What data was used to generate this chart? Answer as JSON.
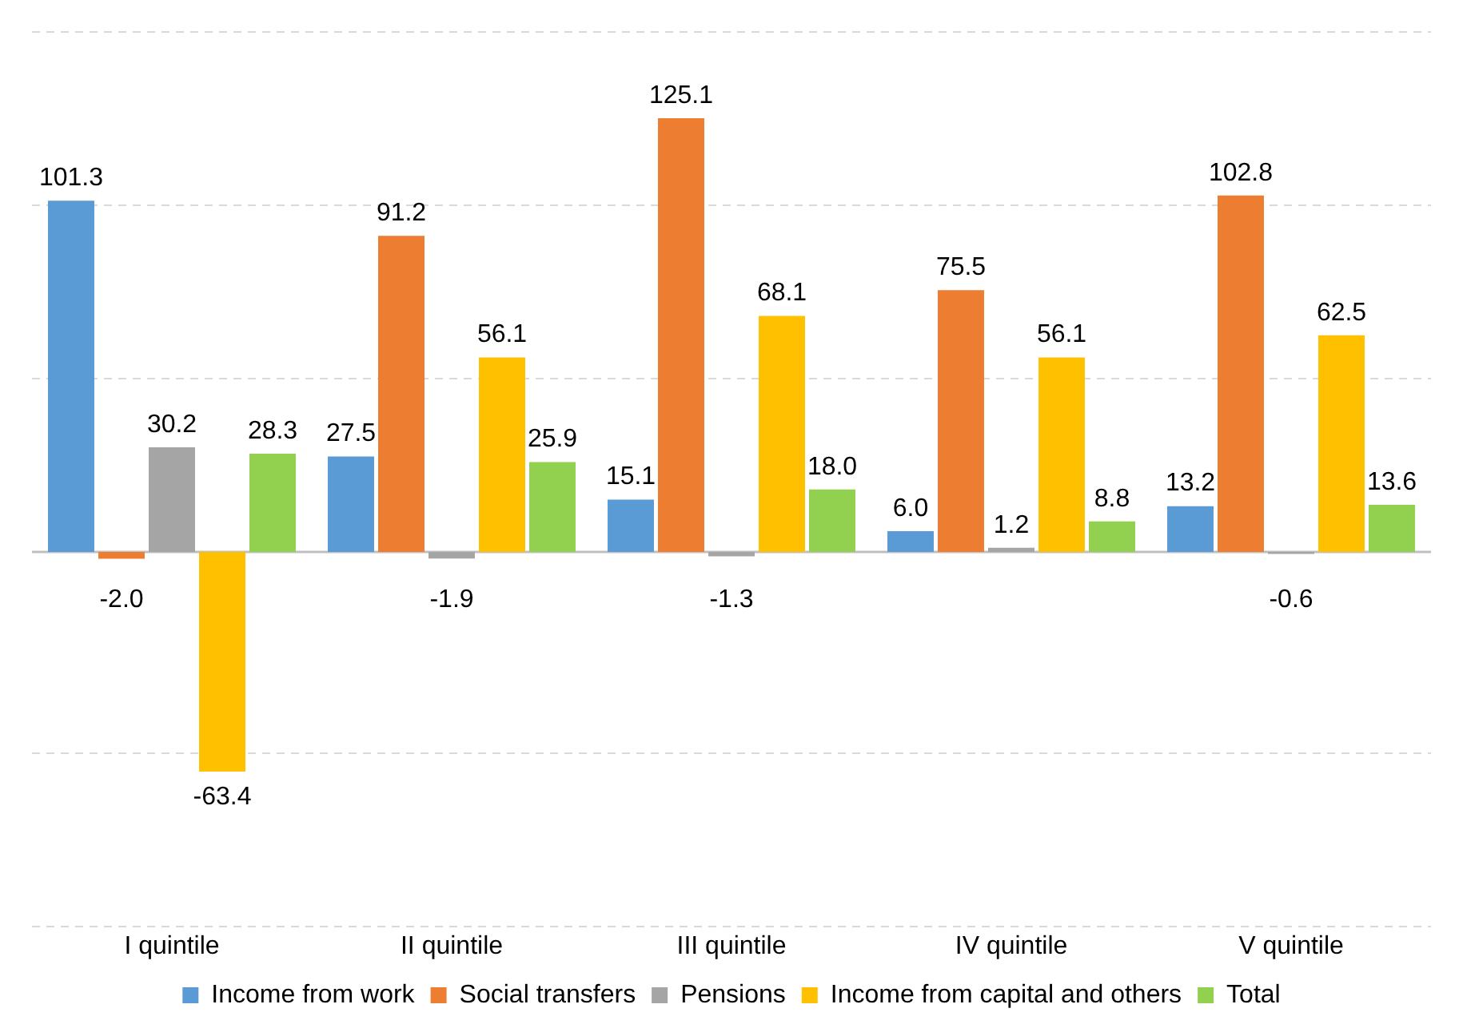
{
  "chart_data": {
    "type": "bar",
    "categories": [
      "I quintile",
      "II quintile",
      "III quintile",
      "IV quintile",
      "V quintile"
    ],
    "series": [
      {
        "name": "Income from work",
        "color": "#5b9bd5",
        "values": [
          101.3,
          27.5,
          15.1,
          6.0,
          13.2
        ],
        "value_labels": [
          "101.3",
          "27.5",
          "15.1",
          "6.0",
          "13.2"
        ]
      },
      {
        "name": "Social transfers",
        "color": "#ed7d31",
        "values": [
          -2.0,
          91.2,
          125.1,
          75.5,
          102.8
        ],
        "value_labels": [
          "-2.0",
          "91.2",
          "125.1",
          "75.5",
          "102.8"
        ]
      },
      {
        "name": "Pensions",
        "color": "#a5a5a5",
        "values": [
          30.2,
          -1.9,
          -1.3,
          1.2,
          -0.6
        ],
        "value_labels": [
          "30.2",
          "-1.9",
          "-1.3",
          "1.2",
          "-0.6"
        ]
      },
      {
        "name": "Income from capital and others",
        "color": "#ffc000",
        "values": [
          -63.4,
          56.1,
          68.1,
          56.1,
          62.5
        ],
        "value_labels": [
          "-63.4",
          "56.1",
          "68.1",
          "56.1",
          "62.5"
        ]
      },
      {
        "name": "Total",
        "color": "#92d050",
        "values": [
          28.3,
          25.9,
          18.0,
          8.8,
          13.6
        ],
        "value_labels": [
          "28.3",
          "25.9",
          "18.0",
          "8.8",
          "13.6"
        ]
      }
    ],
    "ylim": [
      -108,
      150
    ],
    "yticks": [
      {
        "value": -108,
        "label": null
      },
      {
        "value": -58,
        "label": null
      },
      {
        "value": 50,
        "label": null
      },
      {
        "value": 100,
        "label": null
      },
      {
        "value": 150,
        "label": null
      }
    ],
    "ref_lines": [
      {
        "axis": "y",
        "value": 0,
        "color": "#bfbfbf"
      }
    ],
    "tick_labels": "x",
    "grid": "y",
    "legend": "bottom"
  }
}
